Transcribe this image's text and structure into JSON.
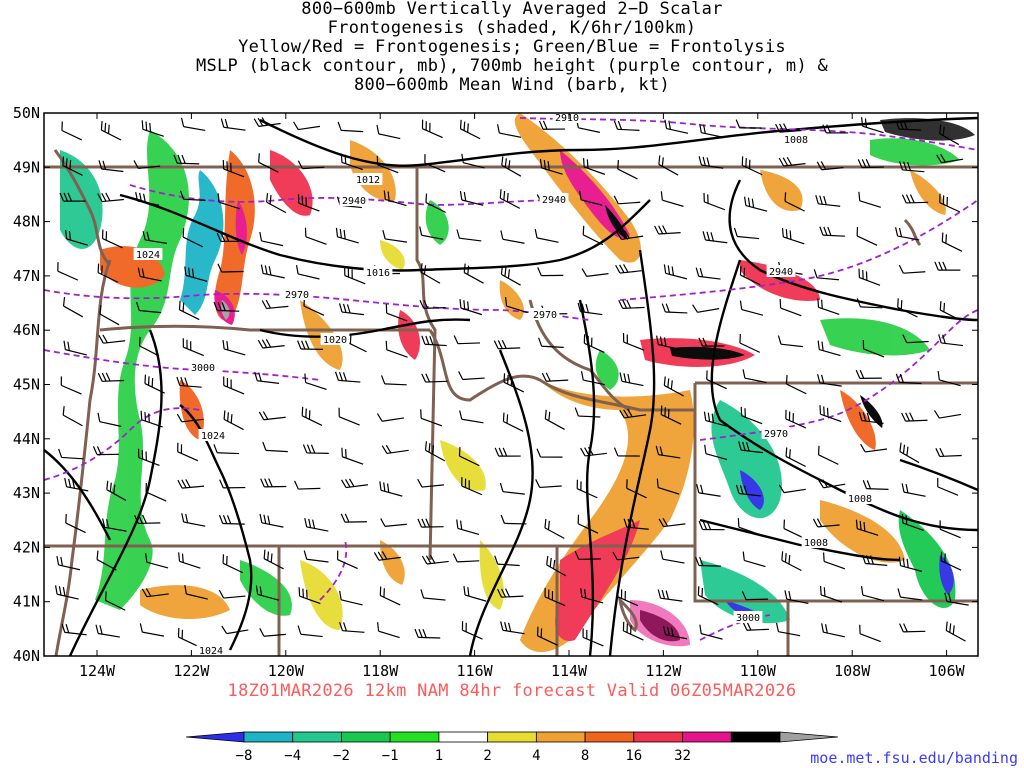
{
  "title_lines": [
    "800−600mb Vertically Averaged 2−D Scalar",
    "Frontogenesis (shaded, K/6hr/100km)",
    "Yellow/Red = Frontogenesis;  Green/Blue = Frontolysis",
    "MSLP (black contour, mb), 700mb height (purple contour, m) &",
    "800−600mb Mean Wind (barb, kt)"
  ],
  "forecast_label": "18Z01MAR2026 12km NAM 84hr forecast Valid 06Z05MAR2026",
  "credit": "moe.met.fsu.edu/banding",
  "lon_labels": [
    "124W",
    "122W",
    "120W",
    "118W",
    "116W",
    "114W",
    "112W",
    "110W",
    "108W",
    "106W"
  ],
  "lat_labels": [
    "50N",
    "49N",
    "48N",
    "47N",
    "46N",
    "45N",
    "44N",
    "43N",
    "42N",
    "41N",
    "40N"
  ],
  "colorbar": {
    "tick_labels": [
      "−8",
      "−4",
      "−2",
      "−1",
      "1",
      "2",
      "4",
      "8",
      "16",
      "32"
    ],
    "colors": [
      "#2e2ee6",
      "#1eb4c8",
      "#22c890",
      "#18c850",
      "#22e022",
      "#ffffff",
      "#e6dc32",
      "#f0a032",
      "#f0641e",
      "#f03250",
      "#e6148c",
      "#000000",
      "#a0a0a0"
    ]
  },
  "colors": {
    "state_borders": "#806050",
    "mslp_contour": "#000000",
    "height_contour": "#a020d0",
    "subtitle": "#ff5a5a",
    "credit": "#3a3aff"
  },
  "mslp_labels": [
    "1008",
    "1012",
    "1016",
    "1020",
    "1024",
    "1000",
    "1024",
    "1008",
    "1008",
    "1024"
  ],
  "height_labels": [
    "2910",
    "2940",
    "2940",
    "2970",
    "2970",
    "2940",
    "2970",
    "3000",
    "3000"
  ]
}
